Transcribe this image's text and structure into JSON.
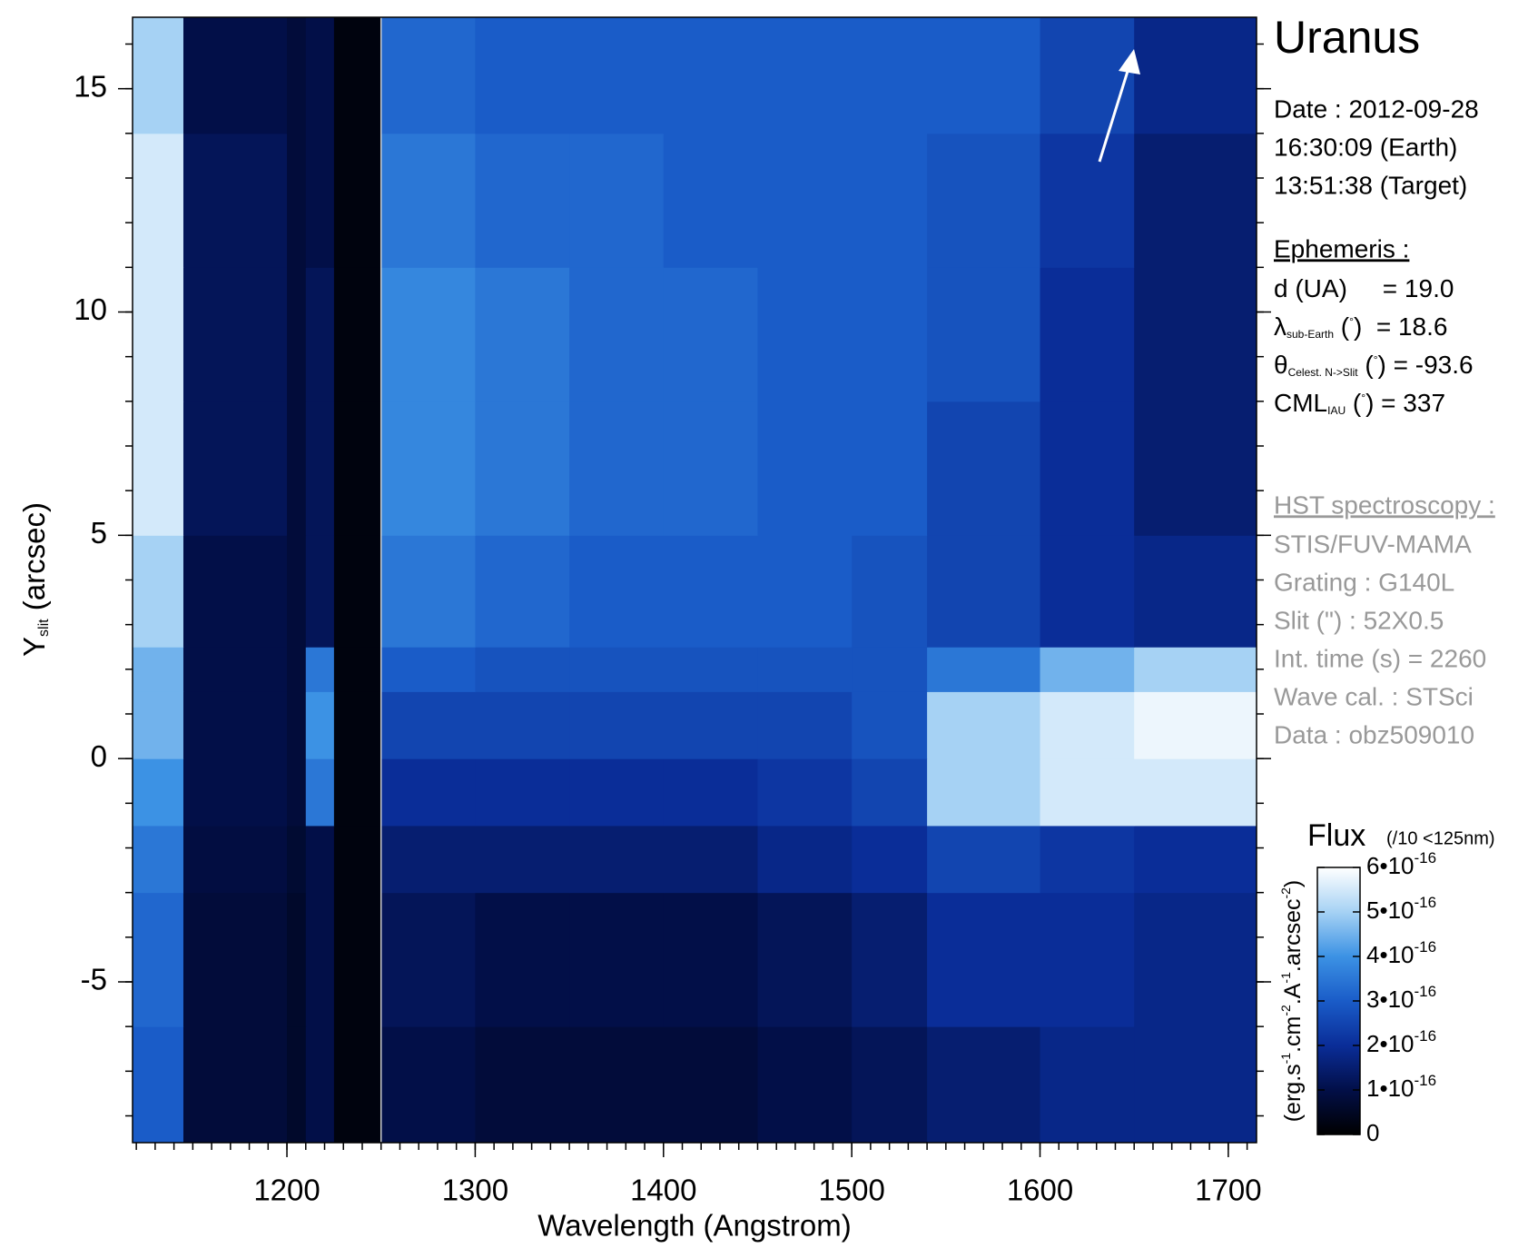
{
  "chart_data": {
    "type": "heatmap",
    "xlabel": "Wavelength (Angstrom)",
    "ylabel": [
      "Y",
      {
        "sub": "slit"
      },
      " (arcsec)"
    ],
    "xlim": [
      1118,
      1715
    ],
    "ylim": [
      -8.6,
      16.6
    ],
    "xticks": [
      1200,
      1300,
      1400,
      1500,
      1600,
      1700
    ],
    "yticks": [
      -5,
      0,
      5,
      10,
      15
    ],
    "xminorticks": [
      1120,
      1130,
      1140,
      1150,
      1160,
      1170,
      1180,
      1190,
      1200,
      1210,
      1220,
      1230,
      1240,
      1250,
      1260,
      1270,
      1280,
      1290,
      1300,
      1310,
      1320,
      1330,
      1340,
      1350,
      1360,
      1370,
      1380,
      1390,
      1400,
      1410,
      1420,
      1430,
      1440,
      1450,
      1460,
      1470,
      1480,
      1490,
      1500,
      1510,
      1520,
      1530,
      1540,
      1550,
      1560,
      1570,
      1580,
      1590,
      1600,
      1610,
      1620,
      1630,
      1640,
      1650,
      1660,
      1670,
      1680,
      1690,
      1700,
      1710
    ],
    "yminorticks": [
      -8,
      -7,
      -6,
      -5,
      -4,
      -3,
      -2,
      -1,
      0,
      1,
      2,
      3,
      4,
      5,
      6,
      7,
      8,
      9,
      10,
      11,
      12,
      13,
      14,
      15,
      16
    ],
    "xbins": [
      1118,
      1145,
      1200,
      1210,
      1225,
      1250,
      1300,
      1350,
      1400,
      1450,
      1500,
      1540,
      1600,
      1650,
      1715
    ],
    "ybins": [
      -8.6,
      -6,
      -3,
      -1.5,
      0,
      1.5,
      2.5,
      5,
      8,
      11,
      14,
      16.6
    ],
    "z": [
      [
        3e-16,
        8e-17,
        6e-17,
        1e-16,
        2e-17,
        1e-16,
        8e-17,
        8e-17,
        8e-17,
        1e-16,
        1.2e-16,
        1.5e-16,
        1.8e-16,
        1.8e-16
      ],
      [
        3.2e-16,
        8e-17,
        6e-17,
        1e-16,
        2e-17,
        1.2e-16,
        1e-16,
        1e-16,
        1e-16,
        1.2e-16,
        1.5e-16,
        2e-16,
        2e-16,
        1.8e-16
      ],
      [
        3.5e-16,
        9e-17,
        7e-17,
        1e-16,
        2e-17,
        1.5e-16,
        1.5e-16,
        1.5e-16,
        1.5e-16,
        1.8e-16,
        2e-16,
        2.5e-16,
        2.2e-16,
        2e-16
      ],
      [
        4e-16,
        1e-16,
        8e-17,
        3.5e-16,
        2e-17,
        2e-16,
        2e-16,
        2e-16,
        2e-16,
        2.2e-16,
        2.5e-16,
        5e-16,
        5.5e-16,
        5.5e-16
      ],
      [
        4.5e-16,
        1e-16,
        8e-17,
        4e-16,
        2e-17,
        2.5e-16,
        2.5e-16,
        2.5e-16,
        2.5e-16,
        2.5e-16,
        2.8e-16,
        5e-16,
        5.5e-16,
        5.8e-16
      ],
      [
        4.5e-16,
        1e-16,
        8e-17,
        3.5e-16,
        2e-17,
        3e-16,
        2.8e-16,
        2.8e-16,
        2.8e-16,
        2.8e-16,
        2.8e-16,
        3.5e-16,
        4.5e-16,
        5e-16
      ],
      [
        5e-16,
        1e-16,
        8e-17,
        1.2e-16,
        2e-17,
        3.5e-16,
        3.2e-16,
        3e-16,
        3e-16,
        3e-16,
        2.8e-16,
        2.5e-16,
        2e-16,
        1.8e-16
      ],
      [
        5.5e-16,
        1.2e-16,
        8e-17,
        1.2e-16,
        2e-17,
        3.8e-16,
        3.5e-16,
        3.2e-16,
        3.2e-16,
        3e-16,
        3e-16,
        2.5e-16,
        2e-16,
        1.5e-16
      ],
      [
        5.5e-16,
        1.2e-16,
        8e-17,
        1.2e-16,
        2e-17,
        3.8e-16,
        3.5e-16,
        3.2e-16,
        3.2e-16,
        3e-16,
        3e-16,
        2.8e-16,
        2e-16,
        1.5e-16
      ],
      [
        5.5e-16,
        1.2e-16,
        8e-17,
        1e-16,
        2e-17,
        3.5e-16,
        3.2e-16,
        3.2e-16,
        3e-16,
        3e-16,
        3e-16,
        2.8e-16,
        2.2e-16,
        1.5e-16
      ],
      [
        5e-16,
        1e-16,
        8e-17,
        1e-16,
        2e-17,
        3.2e-16,
        3e-16,
        3e-16,
        3e-16,
        3e-16,
        3e-16,
        3e-16,
        2.5e-16,
        1.8e-16
      ]
    ],
    "colormap": [
      "#000000",
      "#020f48",
      "#0a2d98",
      "#1a5cc8",
      "#3c92e4",
      "#a6d2f4",
      "#ffffff"
    ],
    "colorbar": {
      "title": "Flux",
      "note": "(/10 <125nm)",
      "label": [
        "(erg.s",
        {
          "sup": "-1"
        },
        ".cm",
        {
          "sup": "-2"
        },
        ".A",
        {
          "sup": "-1"
        },
        ".arcsec",
        {
          "sup": "-2"
        },
        ")"
      ],
      "lim": [
        0,
        6e-16
      ],
      "ticks": [
        0,
        {
          "value": 1e-16,
          "label": "1•10",
          "exponent": "-16"
        },
        {
          "value": 2e-16,
          "label": "2•10",
          "exponent": "-16"
        },
        {
          "value": 3e-16,
          "label": "3•10",
          "exponent": "-16"
        },
        {
          "value": 4e-16,
          "label": "4•10",
          "exponent": "-16"
        },
        {
          "value": 5e-16,
          "label": "5•10",
          "exponent": "-16"
        },
        {
          "value": 6e-16,
          "label": "6•10",
          "exponent": "-16"
        }
      ]
    }
  },
  "panel": {
    "title": "Uranus",
    "date": [
      "Date : 2012-09-28",
      "16:30:09 (Earth)",
      "13:51:38 (Target)"
    ],
    "ephemeris_title": "Ephemeris :",
    "ephemeris": [
      [
        "d (UA)     = 19.0"
      ],
      [
        "λ",
        {
          "sub": "sub-Earth"
        },
        " (",
        {
          "sup": "°"
        },
        ")  = 18.6"
      ],
      [
        "θ",
        {
          "sub": "Celest. N->Slit"
        },
        " (",
        {
          "sup": "°"
        },
        ") = -93.6"
      ],
      [
        "CML",
        {
          "sub": "IAU"
        },
        " (",
        {
          "sup": "°"
        },
        ") = 337"
      ]
    ],
    "hst_title": "HST spectroscopy :",
    "hst": [
      "STIS/FUV-MAMA",
      "Grating : G140L",
      "Slit (\") : 52X0.5",
      "Int. time (s) = 2260",
      "Wave cal. : STSci",
      "Data : obz509010"
    ]
  }
}
